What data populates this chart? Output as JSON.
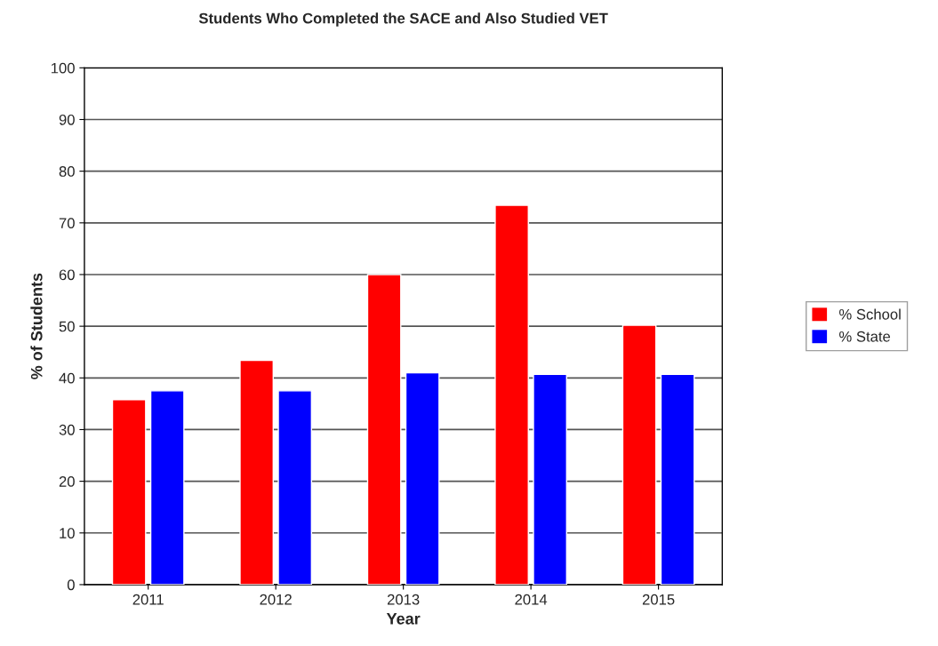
{
  "chart_data": {
    "type": "bar",
    "title": "Students Who Completed the SACE and Also Studied VET",
    "xlabel": "Year",
    "ylabel": "% of Students",
    "categories": [
      "2011",
      "2012",
      "2013",
      "2014",
      "2015"
    ],
    "series": [
      {
        "name": "% School",
        "color": "#ff0000",
        "values": [
          35.8,
          43.4,
          60,
          73.4,
          50.2
        ]
      },
      {
        "name": "% State",
        "color": "#0000ff",
        "values": [
          37.5,
          37.5,
          41,
          40.7,
          40.7
        ]
      }
    ],
    "ylim": [
      0,
      100
    ],
    "yticks": [
      0,
      10,
      20,
      30,
      40,
      50,
      60,
      70,
      80,
      90,
      100
    ],
    "grid": "y",
    "legend": "right"
  }
}
